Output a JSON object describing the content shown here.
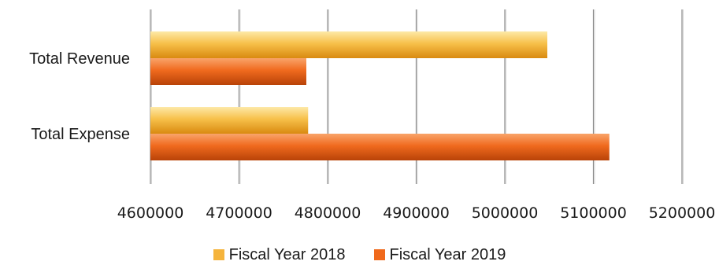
{
  "chart_data": {
    "type": "bar",
    "orientation": "horizontal",
    "categories": [
      "Total Revenue",
      "Total Expense"
    ],
    "series": [
      {
        "name": "Fiscal Year 2018",
        "values": [
          5048000,
          4778000
        ],
        "color": "#f5b43c"
      },
      {
        "name": "Fiscal Year 2019",
        "values": [
          4776000,
          5118000
        ],
        "color": "#f0691c"
      }
    ],
    "xlim": [
      4600000,
      5200000
    ],
    "xticks": [
      4600000,
      4700000,
      4800000,
      4900000,
      5000000,
      5100000,
      5200000
    ],
    "xtick_labels": [
      "4600000",
      "4700000",
      "4800000",
      "4900000",
      "5000000",
      "5100000",
      "5200000"
    ],
    "grid": "vertical",
    "legend_position": "bottom"
  }
}
